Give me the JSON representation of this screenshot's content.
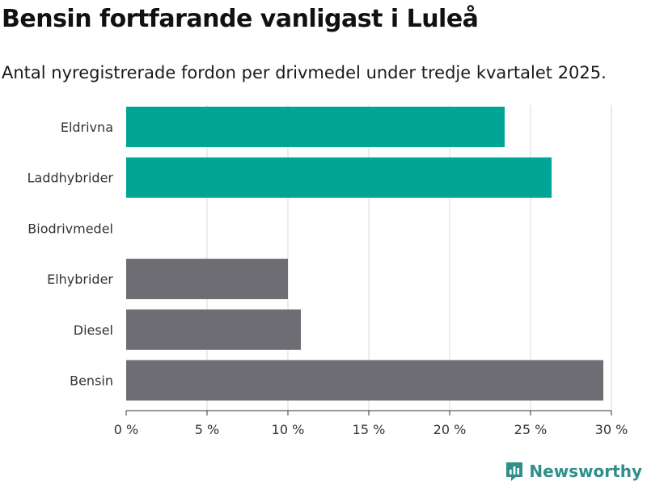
{
  "header": {
    "title": "Bensin fortfarande vanligast i Luleå",
    "subtitle": "Antal nyregistrerade fordon per drivmedel under tredje kvartalet 2025."
  },
  "chart_data": {
    "type": "bar",
    "orientation": "horizontal",
    "categories": [
      "Eldrivna",
      "Laddhybrider",
      "Biodrivmedel",
      "Elhybrider",
      "Diesel",
      "Bensin"
    ],
    "values": [
      23.4,
      26.3,
      0,
      10.0,
      10.8,
      29.5
    ],
    "bar_colors": [
      "#00a596",
      "#00a596",
      "#00a596",
      "#6e6d73",
      "#6e6d73",
      "#6e6d73"
    ],
    "xlim": [
      0,
      30
    ],
    "xticks": [
      0,
      5,
      10,
      15,
      20,
      25,
      30
    ],
    "tick_labels": [
      "0 %",
      "5 %",
      "10 %",
      "15 %",
      "20 %",
      "25 %",
      "30 %"
    ],
    "grid": true,
    "title": "Bensin fortfarande vanligast i Luleå",
    "xlabel": "",
    "ylabel": ""
  },
  "branding": {
    "logo_text": "Newsworthy",
    "logo_icon": "newsworthy-chart-icon",
    "accent_color": "#2f8f8a"
  }
}
